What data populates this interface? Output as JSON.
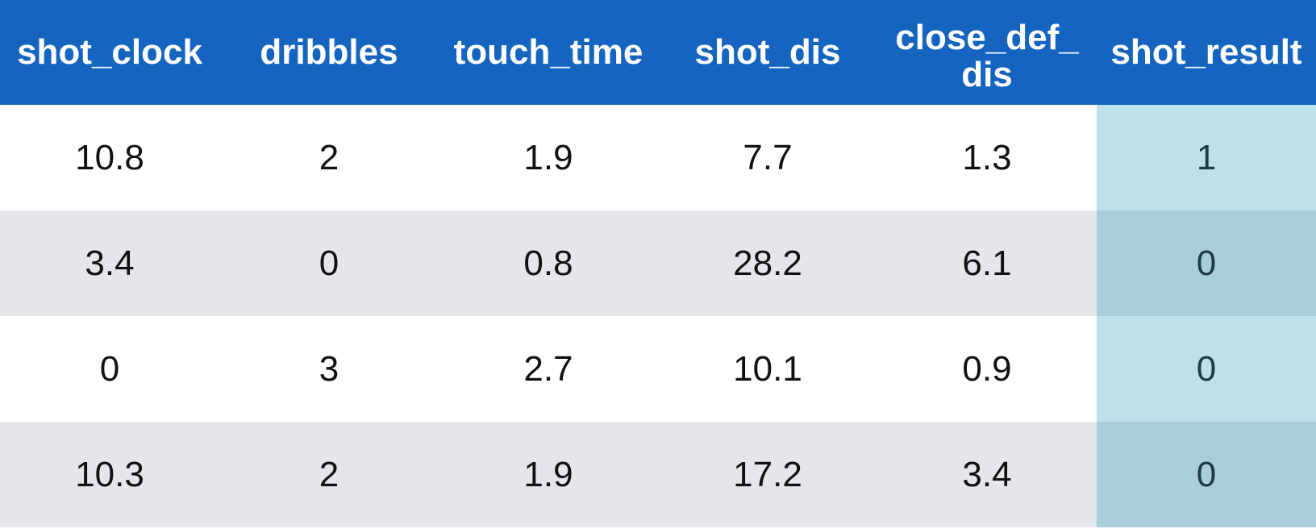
{
  "table": {
    "columns": [
      "shot_clock",
      "dribbles",
      "touch_time",
      "shot_dis",
      "close_def_dis",
      "shot_result"
    ],
    "rows": [
      [
        "10.8",
        "2",
        "1.9",
        "7.7",
        "1.3",
        "1"
      ],
      [
        "3.4",
        "0",
        "0.8",
        "28.2",
        "6.1",
        "0"
      ],
      [
        "0",
        "3",
        "2.7",
        "10.1",
        "0.9",
        "0"
      ],
      [
        "10.3",
        "2",
        "1.9",
        "17.2",
        "3.4",
        "0"
      ]
    ],
    "highlighted_column": "shot_result"
  },
  "colors": {
    "header_bg": "#1565c0",
    "header_text": "#ffffff",
    "row_alt_bg": "#e5e6ea",
    "highlight_odd": "#bde0eb",
    "highlight_even": "#a8cedc"
  }
}
